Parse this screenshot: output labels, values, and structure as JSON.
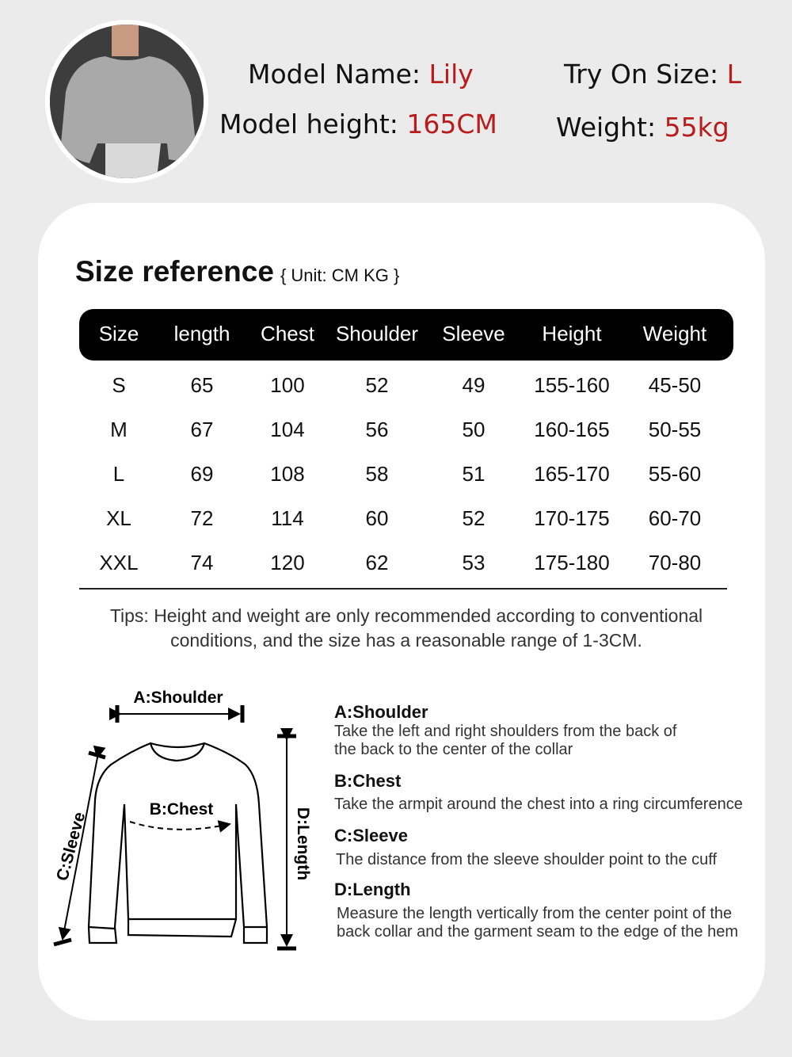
{
  "model": {
    "name_label": "Model Name:",
    "name": "Lily",
    "height_label": "Model height:",
    "height": "165CM",
    "try_on_label": "Try On Size:",
    "try_on_size": "L",
    "weight_label": "Weight:",
    "weight": "55kg"
  },
  "accent_color": "#b81c1c",
  "size_reference": {
    "title": "Size reference",
    "unit": "{ Unit: CM KG }",
    "headers": [
      "Size",
      "length",
      "Chest",
      "Shoulder",
      "Sleeve",
      "Height",
      "Weight"
    ],
    "rows": [
      [
        "S",
        "65",
        "100",
        "52",
        "49",
        "155-160",
        "45-50"
      ],
      [
        "M",
        "67",
        "104",
        "56",
        "50",
        "160-165",
        "50-55"
      ],
      [
        "L",
        "69",
        "108",
        "58",
        "51",
        "165-170",
        "55-60"
      ],
      [
        "XL",
        "72",
        "114",
        "60",
        "52",
        "170-175",
        "60-70"
      ],
      [
        "XXL",
        "74",
        "120",
        "62",
        "53",
        "175-180",
        "70-80"
      ]
    ],
    "tips_line1": "Tips: Height and weight are only recommended according to conventional",
    "tips_line2": "conditions, and the size has a reasonable range of 1-3CM."
  },
  "diagram": {
    "shoulder_label": "A:Shoulder",
    "chest_label": "B:Chest",
    "sleeve_label": "C:Sleeve",
    "length_label": "D:Length"
  },
  "descriptions": [
    {
      "title": "A:Shoulder",
      "lines": [
        "Take the left and right shoulders from the back of",
        "the back to the center of the collar"
      ]
    },
    {
      "title": "B:Chest",
      "lines": [
        "Take the armpit around the chest into a ring circumference"
      ]
    },
    {
      "title": "C:Sleeve",
      "lines": [
        "The distance from the sleeve shoulder point to the cuff"
      ]
    },
    {
      "title": "D:Length",
      "lines": [
        "Measure the length vertically from the center point of the",
        "back collar and the garment seam to the edge of the hem"
      ]
    }
  ]
}
